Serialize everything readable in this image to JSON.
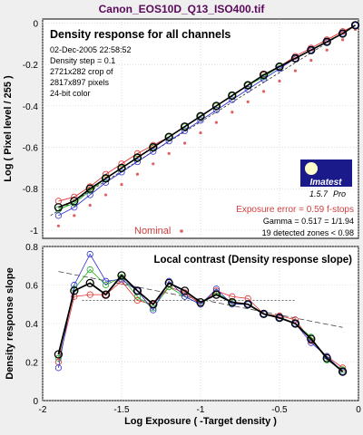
{
  "window_title": "Canon_EOS10D_Q13_ISO400.tif",
  "top_panel": {
    "title": "Density response for all channels",
    "info_lines": [
      "02-Dec-2005 22:58:52",
      "Density step = 0.1",
      "2721x282 crop of",
      "2817x897 pixels",
      "24-bit color"
    ],
    "ylabel": "Log ( Pixel level / 255 )",
    "yticks": [
      "-1",
      "-0.8",
      "-0.6",
      "-0.4",
      "-0.2",
      "0"
    ],
    "nominal_label": "Nominal",
    "logo_text": "Imatest",
    "logo_version": "1.5.7",
    "logo_edition": "Pro",
    "exposure_error": "Exposure error = 0.59 f-stops",
    "gamma": "Gamma = 0.517 = 1/1.94",
    "zones": "19 detected zones < 0.98"
  },
  "bottom_panel": {
    "title": "Local contrast (Density response slope)",
    "ylabel": "Density response slope",
    "yticks": [
      "0",
      "0.2",
      "0.4",
      "0.6",
      "0.8"
    ],
    "xticks": [
      "-2",
      "-1.5",
      "-1",
      "-0.5",
      "0"
    ],
    "xlabel": "Log Exposure ( -Target density )"
  },
  "colors": {
    "red": "#e03030",
    "green": "#20b020",
    "blue": "#3030d0",
    "black": "#000000",
    "nominal": "#e06060",
    "title": "#5a0a5a"
  },
  "chart_data": [
    {
      "type": "line",
      "title": "Density response for all channels",
      "ylabel": "Log ( Pixel level / 255 )",
      "xlim": [
        -2,
        0
      ],
      "ylim": [
        -1.04,
        0.02
      ],
      "x": [
        -1.9,
        -1.8,
        -1.7,
        -1.6,
        -1.5,
        -1.4,
        -1.3,
        -1.2,
        -1.1,
        -1.0,
        -0.9,
        -0.8,
        -0.7,
        -0.6,
        -0.5,
        -0.4,
        -0.3,
        -0.2,
        -0.1,
        -0.02
      ],
      "series": [
        {
          "name": "Red",
          "values": [
            -0.86,
            -0.84,
            -0.79,
            -0.73,
            -0.68,
            -0.63,
            -0.59,
            -0.55,
            -0.5,
            -0.45,
            -0.4,
            -0.35,
            -0.3,
            -0.25,
            -0.21,
            -0.16,
            -0.12,
            -0.08,
            -0.04,
            -0.01
          ]
        },
        {
          "name": "Green",
          "values": [
            -0.9,
            -0.87,
            -0.81,
            -0.75,
            -0.7,
            -0.65,
            -0.6,
            -0.55,
            -0.5,
            -0.45,
            -0.4,
            -0.35,
            -0.3,
            -0.26,
            -0.21,
            -0.17,
            -0.13,
            -0.09,
            -0.05,
            -0.01
          ]
        },
        {
          "name": "Blue",
          "values": [
            -0.93,
            -0.89,
            -0.83,
            -0.77,
            -0.72,
            -0.67,
            -0.62,
            -0.57,
            -0.52,
            -0.47,
            -0.42,
            -0.37,
            -0.32,
            -0.27,
            -0.22,
            -0.17,
            -0.13,
            -0.09,
            -0.05,
            -0.01
          ]
        },
        {
          "name": "Luminance",
          "values": [
            -0.89,
            -0.86,
            -0.8,
            -0.75,
            -0.7,
            -0.65,
            -0.6,
            -0.55,
            -0.5,
            -0.45,
            -0.4,
            -0.35,
            -0.3,
            -0.25,
            -0.21,
            -0.17,
            -0.13,
            -0.09,
            -0.05,
            -0.01
          ]
        }
      ],
      "nominal": {
        "x": [
          -1.9,
          -1.8,
          -1.7,
          -1.6,
          -1.5,
          -1.4,
          -1.3,
          -1.2,
          -1.1,
          -1.0,
          -0.9,
          -0.8,
          -0.7,
          -0.6,
          -0.5,
          -0.4,
          -0.3,
          -0.2,
          -0.1,
          -0.02
        ],
        "y": [
          -0.98,
          -0.93,
          -0.88,
          -0.83,
          -0.78,
          -0.73,
          -0.68,
          -0.63,
          -0.58,
          -0.53,
          -0.48,
          -0.43,
          -0.38,
          -0.33,
          -0.28,
          -0.23,
          -0.18,
          -0.13,
          -0.08,
          -0.03
        ]
      },
      "fit_line": {
        "x": [
          -1.95,
          -0.02
        ],
        "y": [
          -0.93,
          -0.01
        ]
      }
    },
    {
      "type": "line",
      "title": "Local contrast (Density response slope)",
      "xlabel": "Log Exposure ( -Target density )",
      "ylabel": "Density response slope",
      "xlim": [
        -2,
        0
      ],
      "ylim": [
        0,
        0.8
      ],
      "x": [
        -1.9,
        -1.8,
        -1.7,
        -1.6,
        -1.5,
        -1.4,
        -1.3,
        -1.2,
        -1.1,
        -1.0,
        -0.9,
        -0.8,
        -0.7,
        -0.6,
        -0.5,
        -0.4,
        -0.3,
        -0.2,
        -0.1
      ],
      "series": [
        {
          "name": "Red",
          "values": [
            0.2,
            0.54,
            0.55,
            0.55,
            0.62,
            0.52,
            0.5,
            0.59,
            0.56,
            0.5,
            0.57,
            0.54,
            0.53,
            0.45,
            0.44,
            0.42,
            0.31,
            0.23,
            0.17
          ]
        },
        {
          "name": "Green",
          "values": [
            0.22,
            0.58,
            0.68,
            0.6,
            0.64,
            0.54,
            0.48,
            0.59,
            0.54,
            0.5,
            0.56,
            0.51,
            0.5,
            0.45,
            0.43,
            0.4,
            0.33,
            0.21,
            0.16
          ]
        },
        {
          "name": "Blue",
          "values": [
            0.17,
            0.6,
            0.76,
            0.62,
            0.63,
            0.57,
            0.47,
            0.62,
            0.54,
            0.5,
            0.58,
            0.5,
            0.5,
            0.45,
            0.43,
            0.4,
            0.3,
            0.23,
            0.15
          ]
        },
        {
          "name": "Luminance",
          "values": [
            0.24,
            0.57,
            0.61,
            0.55,
            0.65,
            0.57,
            0.5,
            0.61,
            0.57,
            0.51,
            0.55,
            0.51,
            0.5,
            0.45,
            0.43,
            0.4,
            0.32,
            0.22,
            0.15
          ]
        }
      ],
      "trend_line": {
        "x": [
          -1.9,
          -0.1
        ],
        "y": [
          0.67,
          0.38
        ]
      },
      "reference_line": {
        "x": [
          -1.75,
          -0.4
        ],
        "y": [
          0.52,
          0.52
        ]
      }
    }
  ]
}
